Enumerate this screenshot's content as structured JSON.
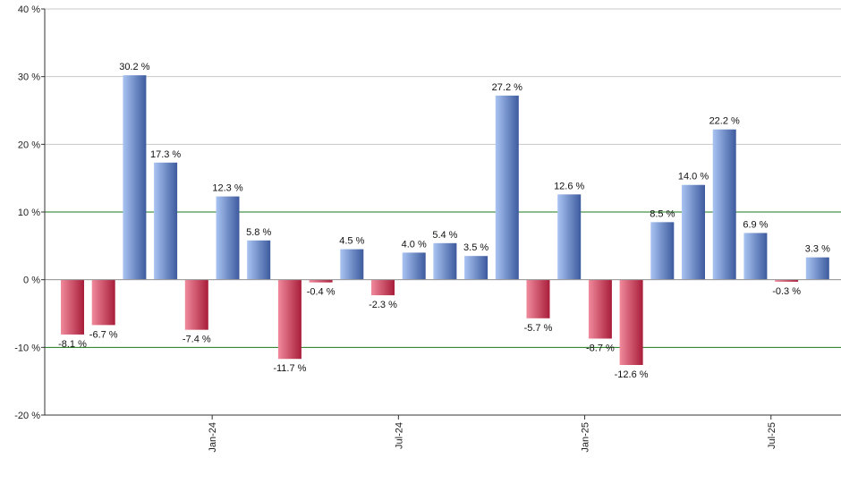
{
  "chart_data": {
    "type": "bar",
    "title": "",
    "xlabel": "",
    "ylabel": "",
    "ylim": [
      -20,
      40
    ],
    "yticks": [
      -20,
      -10,
      0,
      10,
      20,
      30,
      40
    ],
    "ytick_labels": [
      "-20 %",
      "-10 %",
      "0 %",
      "10 %",
      "20 %",
      "30 %",
      "40 %"
    ],
    "x_tick_labels": [
      {
        "label": "Jan-24",
        "at_index": 4.5
      },
      {
        "label": "Jul-24",
        "at_index": 10.5
      },
      {
        "label": "Jan-25",
        "at_index": 16.5
      },
      {
        "label": "Jul-25",
        "at_index": 22.5
      }
    ],
    "values": [
      -8.1,
      -6.7,
      30.2,
      17.3,
      -7.4,
      12.3,
      5.8,
      -11.7,
      -0.4,
      4.5,
      -2.3,
      4.0,
      5.4,
      3.5,
      27.2,
      -5.7,
      12.6,
      -8.7,
      -12.6,
      8.5,
      14.0,
      22.2,
      6.9,
      -0.3,
      3.3
    ],
    "value_labels": [
      "-8.1 %",
      "-6.7 %",
      "30.2 %",
      "17.3 %",
      "-7.4 %",
      "12.3 %",
      "5.8 %",
      "-11.7 %",
      "-0.4 %",
      "4.5 %",
      "-2.3 %",
      "4.0 %",
      "5.4 %",
      "3.5 %",
      "27.2 %",
      "-5.7 %",
      "12.6 %",
      "-8.7 %",
      "-12.6 %",
      "8.5 %",
      "14.0 %",
      "22.2 %",
      "6.9 %",
      "-0.3 %",
      "3.3 %"
    ],
    "reference_lines": [
      10,
      -10
    ],
    "grid": true,
    "colors": {
      "positive_light": "#a9c4f2",
      "positive_dark": "#3d5a9e",
      "negative_light": "#f08a9c",
      "negative_dark": "#a81d3a",
      "reference_line": "#1a7a1a",
      "grid": "#c8c8c8",
      "axis": "#333333"
    }
  }
}
